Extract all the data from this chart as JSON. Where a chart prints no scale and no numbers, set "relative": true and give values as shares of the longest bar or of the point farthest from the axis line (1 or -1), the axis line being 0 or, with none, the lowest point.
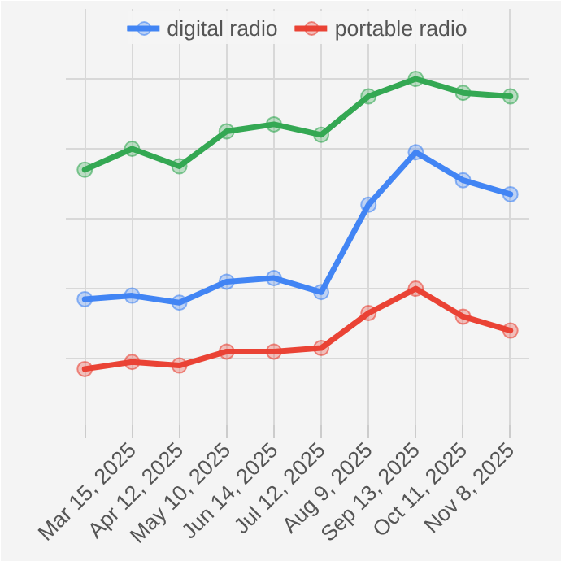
{
  "chart_data": {
    "type": "line",
    "relative": true,
    "categories": [
      null,
      "Mar 15, 2025",
      "Apr 12, 2025",
      "May 10, 2025",
      "Jun 14, 2025",
      "Jul 12, 2025",
      "Aug 9, 2025",
      "Sep 13, 2025",
      "Oct 11, 2025",
      "Nov 8, 2025"
    ],
    "series": [
      {
        "name": "digital radio",
        "color": "#4285f4",
        "values": [
          0.37,
          0.38,
          0.36,
          0.42,
          0.43,
          0.39,
          0.64,
          0.79,
          0.71,
          0.67
        ]
      },
      {
        "name": "portable radio",
        "color": "#ea4335",
        "values": [
          0.17,
          0.19,
          0.18,
          0.22,
          0.22,
          0.23,
          0.33,
          0.4,
          0.32,
          0.28
        ]
      },
      {
        "color": "#34a853",
        "values": [
          0.74,
          0.8,
          0.75,
          0.85,
          0.87,
          0.84,
          0.95,
          1.0,
          0.96,
          0.95
        ]
      }
    ],
    "grid": true,
    "legend": "top",
    "marker": "circle",
    "line_style": "solid"
  }
}
